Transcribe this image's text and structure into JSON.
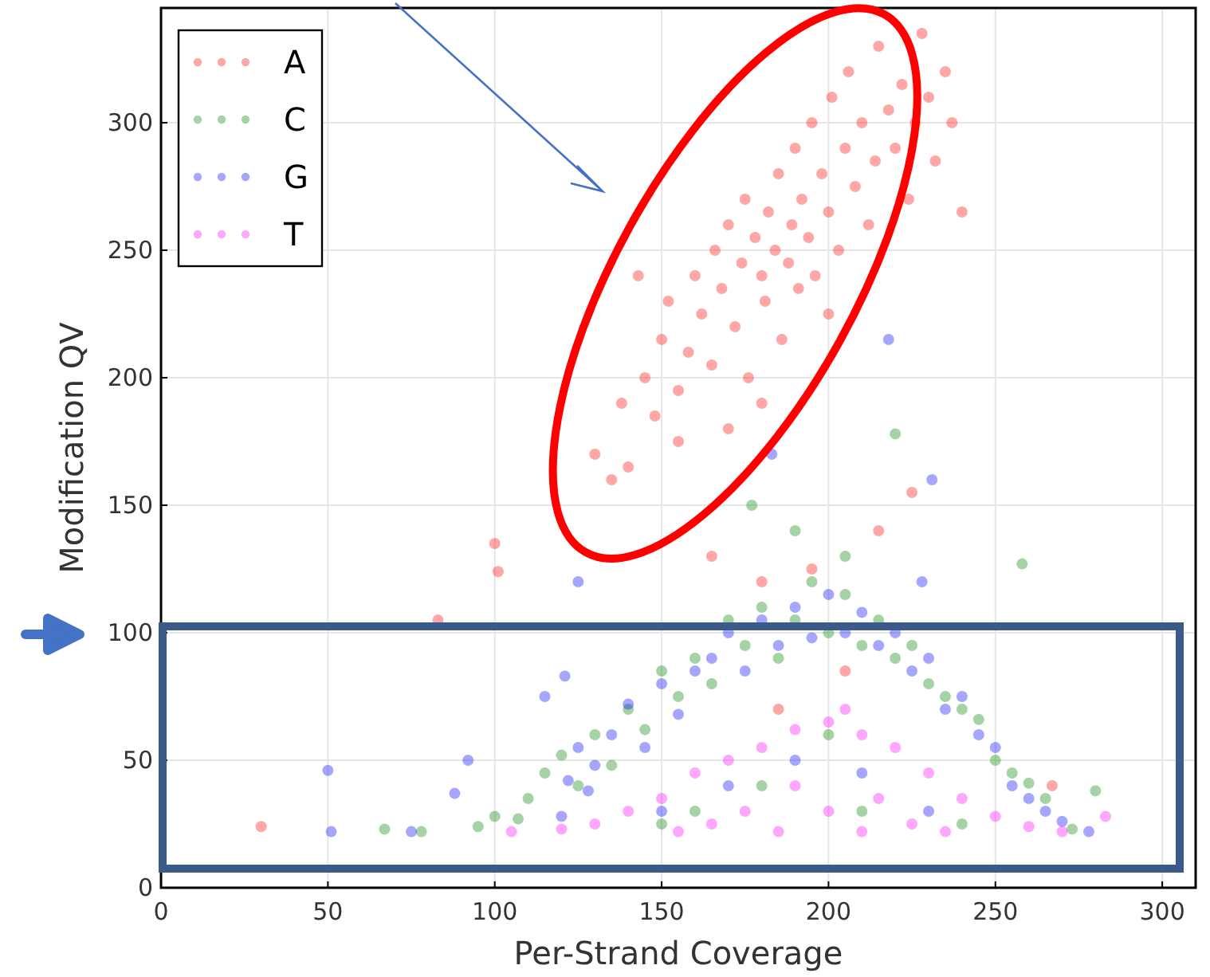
{
  "chart_data": {
    "type": "scatter",
    "xlabel": "Per-Strand Coverage",
    "ylabel": "Modification QV",
    "xlim": [
      0,
      310
    ],
    "ylim": [
      0,
      345
    ],
    "xticks": [
      0,
      50,
      100,
      150,
      200,
      250,
      300
    ],
    "yticks": [
      0,
      50,
      100,
      150,
      200,
      250,
      300
    ],
    "grid": true,
    "legend": "top left",
    "marker": "circle",
    "series": [
      {
        "name": "A",
        "color": "#ff0000",
        "x": [
          130,
          135,
          140,
          138,
          145,
          150,
          148,
          155,
          152,
          158,
          160,
          162,
          165,
          166,
          168,
          170,
          172,
          174,
          175,
          176,
          178,
          180,
          181,
          182,
          184,
          185,
          186,
          188,
          189,
          190,
          191,
          192,
          194,
          195,
          196,
          198,
          200,
          201,
          203,
          205,
          206,
          208,
          210,
          212,
          214,
          215,
          218,
          220,
          222,
          224,
          226,
          228,
          230,
          232,
          235,
          237,
          240,
          170,
          180,
          200,
          143,
          155,
          100,
          101,
          83,
          30,
          165,
          180,
          195,
          215,
          225,
          205,
          185,
          267
        ],
        "values": [
          170,
          160,
          165,
          190,
          200,
          215,
          185,
          195,
          230,
          210,
          240,
          225,
          205,
          250,
          235,
          260,
          220,
          245,
          270,
          200,
          255,
          240,
          230,
          265,
          250,
          280,
          215,
          245,
          260,
          290,
          235,
          270,
          255,
          300,
          240,
          280,
          265,
          310,
          250,
          290,
          320,
          275,
          300,
          260,
          285,
          330,
          305,
          290,
          315,
          270,
          300,
          335,
          310,
          285,
          320,
          300,
          265,
          180,
          190,
          225,
          240,
          175,
          135,
          124,
          105,
          24,
          130,
          120,
          125,
          140,
          155,
          85,
          70,
          40
        ]
      },
      {
        "name": "C",
        "color": "#008000",
        "x": [
          67,
          78,
          95,
          100,
          107,
          110,
          115,
          120,
          125,
          130,
          135,
          140,
          145,
          150,
          155,
          160,
          165,
          170,
          175,
          180,
          185,
          190,
          195,
          200,
          205,
          210,
          215,
          220,
          225,
          230,
          235,
          240,
          245,
          250,
          255,
          258,
          260,
          265,
          273,
          280,
          177,
          190,
          205,
          220,
          200,
          180,
          160,
          150,
          210,
          240
        ],
        "values": [
          23,
          22,
          24,
          28,
          27,
          35,
          45,
          52,
          40,
          60,
          48,
          70,
          62,
          85,
          75,
          90,
          80,
          105,
          95,
          110,
          90,
          105,
          120,
          100,
          115,
          95,
          105,
          90,
          95,
          80,
          75,
          70,
          66,
          50,
          45,
          127,
          41,
          35,
          23,
          38,
          150,
          140,
          130,
          178,
          60,
          40,
          30,
          25,
          30,
          25
        ]
      },
      {
        "name": "G",
        "color": "#0000ff",
        "x": [
          50,
          51,
          75,
          88,
          92,
          115,
          120,
          122,
          125,
          128,
          130,
          135,
          140,
          145,
          150,
          155,
          160,
          165,
          170,
          175,
          180,
          185,
          190,
          195,
          200,
          205,
          210,
          215,
          220,
          225,
          230,
          235,
          240,
          245,
          250,
          255,
          260,
          265,
          270,
          278,
          121,
          125,
          183,
          218,
          231,
          228,
          190,
          170,
          210,
          150,
          230
        ],
        "values": [
          46,
          22,
          22,
          37,
          50,
          75,
          28,
          42,
          55,
          38,
          48,
          60,
          72,
          55,
          80,
          68,
          85,
          90,
          100,
          85,
          105,
          95,
          110,
          98,
          115,
          100,
          108,
          95,
          100,
          85,
          90,
          70,
          75,
          60,
          55,
          40,
          35,
          30,
          26,
          22,
          83,
          120,
          170,
          215,
          160,
          120,
          50,
          40,
          45,
          30,
          30
        ]
      },
      {
        "name": "T",
        "color": "#ff00ff",
        "x": [
          105,
          120,
          130,
          140,
          150,
          160,
          170,
          180,
          190,
          200,
          205,
          210,
          220,
          230,
          240,
          250,
          260,
          270,
          283,
          175,
          190,
          200,
          215,
          225,
          165,
          155,
          235,
          185,
          210
        ],
        "values": [
          22,
          23,
          25,
          30,
          35,
          45,
          50,
          55,
          62,
          65,
          70,
          60,
          55,
          45,
          35,
          28,
          24,
          22,
          28,
          30,
          40,
          30,
          35,
          25,
          25,
          22,
          22,
          22,
          22
        ]
      }
    ]
  }
}
